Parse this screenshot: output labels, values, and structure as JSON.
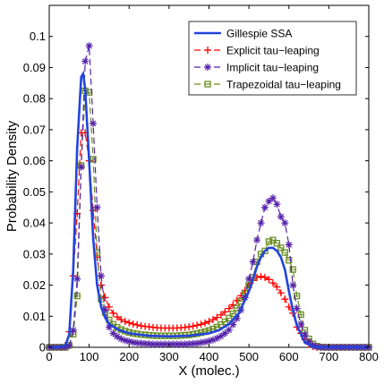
{
  "chart_data": {
    "type": "line",
    "title": "",
    "xlabel": "X (molec.)",
    "ylabel": "Probability Density",
    "xlim": [
      0,
      800
    ],
    "ylim": [
      0,
      0.11
    ],
    "xticks": [
      0,
      100,
      200,
      300,
      400,
      500,
      600,
      700,
      800
    ],
    "xtick_labels": [
      "0",
      "100",
      "200",
      "300",
      "400",
      "500",
      "600",
      "700",
      "800"
    ],
    "yticks": [
      0,
      0.01,
      0.02,
      0.03,
      0.04,
      0.05,
      0.06,
      0.07,
      0.08,
      0.09,
      0.1
    ],
    "ytick_labels": [
      "0",
      "0.01",
      "0.02",
      "0.03",
      "0.04",
      "0.05",
      "0.06",
      "0.07",
      "0.08",
      "0.09",
      "0.1"
    ],
    "grid": false,
    "legend_position": "top-right",
    "series": [
      {
        "name": "Gillespie SSA",
        "color": "#2244dd",
        "marker": "none",
        "x": [
          0,
          20,
          40,
          50,
          60,
          70,
          80,
          85,
          90,
          100,
          110,
          120,
          130,
          140,
          150,
          175,
          200,
          250,
          300,
          350,
          400,
          425,
          450,
          475,
          500,
          510,
          520,
          530,
          540,
          550,
          560,
          570,
          580,
          590,
          600,
          610,
          620,
          640,
          660,
          680,
          700,
          800
        ],
        "y": [
          0,
          0,
          0.0005,
          0.004,
          0.025,
          0.064,
          0.087,
          0.088,
          0.083,
          0.06,
          0.035,
          0.02,
          0.013,
          0.0095,
          0.0075,
          0.0055,
          0.0045,
          0.0037,
          0.0035,
          0.0037,
          0.0045,
          0.0055,
          0.0075,
          0.011,
          0.018,
          0.022,
          0.026,
          0.029,
          0.031,
          0.032,
          0.032,
          0.031,
          0.029,
          0.025,
          0.018,
          0.012,
          0.007,
          0.0015,
          0.0003,
          0,
          0,
          0
        ]
      },
      {
        "name": "Explicit tau−leaping",
        "color": "#ff0000",
        "marker": "plus",
        "x": [
          0,
          10,
          20,
          30,
          40,
          50,
          60,
          70,
          80,
          90,
          100,
          110,
          120,
          130,
          140,
          150,
          160,
          170,
          180,
          190,
          200,
          210,
          220,
          230,
          240,
          250,
          260,
          270,
          280,
          290,
          300,
          310,
          320,
          330,
          340,
          350,
          360,
          370,
          380,
          390,
          400,
          410,
          420,
          430,
          440,
          450,
          460,
          470,
          480,
          490,
          500,
          510,
          520,
          530,
          540,
          550,
          560,
          570,
          580,
          590,
          600,
          610,
          620,
          630,
          640,
          650,
          660,
          670,
          680,
          690,
          700,
          710,
          720,
          730,
          740,
          750,
          760,
          770,
          780,
          790,
          800
        ],
        "y": [
          0,
          0,
          0,
          0,
          0.0005,
          0.005,
          0.023,
          0.043,
          0.069,
          0.069,
          0.06,
          0.044,
          0.029,
          0.02,
          0.016,
          0.013,
          0.011,
          0.0098,
          0.0089,
          0.0083,
          0.0079,
          0.0075,
          0.0072,
          0.0069,
          0.0067,
          0.0066,
          0.0064,
          0.0063,
          0.0062,
          0.0062,
          0.0062,
          0.0062,
          0.0062,
          0.0063,
          0.0064,
          0.0066,
          0.0068,
          0.0071,
          0.0074,
          0.0078,
          0.0083,
          0.0089,
          0.0096,
          0.0104,
          0.0114,
          0.0125,
          0.0137,
          0.0151,
          0.0166,
          0.0183,
          0.0202,
          0.0215,
          0.0225,
          0.0228,
          0.0225,
          0.0218,
          0.0207,
          0.0194,
          0.0175,
          0.0155,
          0.013,
          0.011,
          0.0065,
          0.0045,
          0.0025,
          0.001,
          0.0003,
          0,
          0,
          0,
          0,
          0,
          0,
          0,
          0,
          0,
          0,
          0,
          0,
          0,
          0
        ]
      },
      {
        "name": "Implicit tau−leaping",
        "color": "#5522aa",
        "marker": "star",
        "x": [
          0,
          10,
          20,
          30,
          40,
          50,
          60,
          70,
          80,
          90,
          100,
          110,
          120,
          130,
          140,
          150,
          160,
          170,
          180,
          190,
          200,
          210,
          220,
          230,
          240,
          250,
          260,
          270,
          280,
          290,
          300,
          310,
          320,
          330,
          340,
          350,
          360,
          370,
          380,
          390,
          400,
          410,
          420,
          430,
          440,
          450,
          460,
          470,
          480,
          490,
          500,
          510,
          520,
          530,
          540,
          550,
          560,
          570,
          580,
          590,
          600,
          610,
          620,
          630,
          640,
          650,
          660,
          670,
          680,
          690,
          700,
          710,
          720,
          730,
          740,
          750,
          760,
          770,
          780,
          790,
          800
        ],
        "y": [
          0,
          0,
          0,
          0,
          0,
          0.0005,
          0.0055,
          0.022,
          0.058,
          0.092,
          0.097,
          0.072,
          0.045,
          0.023,
          0.012,
          0.0065,
          0.0045,
          0.0035,
          0.0027,
          0.0022,
          0.0019,
          0.0016,
          0.0014,
          0.0013,
          0.0012,
          0.0011,
          0.001,
          0.001,
          0.001,
          0.001,
          0.001,
          0.001,
          0.001,
          0.001,
          0.001,
          0.0011,
          0.0012,
          0.0013,
          0.0015,
          0.0017,
          0.002,
          0.0024,
          0.0029,
          0.0036,
          0.0045,
          0.0056,
          0.0073,
          0.0093,
          0.012,
          0.016,
          0.022,
          0.0275,
          0.0345,
          0.04,
          0.045,
          0.047,
          0.048,
          0.046,
          0.042,
          0.04,
          0.033,
          0.02,
          0.0125,
          0.0075,
          0.004,
          0.0018,
          0.0006,
          0.0002,
          0,
          0,
          0,
          0,
          0,
          0,
          0,
          0,
          0,
          0,
          0,
          0,
          0
        ]
      },
      {
        "name": "Trapezoidal tau−leaping",
        "color": "#6b8e23",
        "marker": "square",
        "x": [
          0,
          10,
          20,
          30,
          40,
          50,
          60,
          70,
          80,
          90,
          100,
          110,
          120,
          130,
          140,
          150,
          160,
          170,
          180,
          190,
          200,
          210,
          220,
          230,
          240,
          250,
          260,
          270,
          280,
          290,
          300,
          310,
          320,
          330,
          340,
          350,
          360,
          370,
          380,
          390,
          400,
          410,
          420,
          430,
          440,
          450,
          460,
          470,
          480,
          490,
          500,
          510,
          520,
          530,
          540,
          550,
          560,
          570,
          580,
          590,
          600,
          610,
          620,
          630,
          640,
          650,
          660,
          670,
          680,
          690,
          700,
          710,
          720,
          730,
          740,
          750,
          760,
          770,
          780,
          790,
          800
        ],
        "y": [
          0,
          0,
          0,
          0,
          0,
          0.0007,
          0.0042,
          0.0165,
          0.0585,
          0.0825,
          0.082,
          0.0605,
          0.0305,
          0.0155,
          0.0112,
          0.0088,
          0.0074,
          0.0064,
          0.0057,
          0.0052,
          0.0048,
          0.0045,
          0.0043,
          0.0041,
          0.004,
          0.0039,
          0.0038,
          0.0037,
          0.0037,
          0.0037,
          0.0037,
          0.0037,
          0.0037,
          0.0038,
          0.0039,
          0.004,
          0.0042,
          0.0044,
          0.0047,
          0.005,
          0.0054,
          0.0059,
          0.0065,
          0.0073,
          0.0082,
          0.0094,
          0.0108,
          0.0126,
          0.0148,
          0.0173,
          0.02,
          0.0225,
          0.0275,
          0.03,
          0.031,
          0.034,
          0.0345,
          0.0335,
          0.032,
          0.0305,
          0.028,
          0.025,
          0.0165,
          0.0105,
          0.0055,
          0.0027,
          0.0011,
          0.0004,
          0.0001,
          0,
          0,
          0,
          0,
          0,
          0,
          0,
          0,
          0,
          0,
          0,
          0
        ]
      }
    ]
  }
}
